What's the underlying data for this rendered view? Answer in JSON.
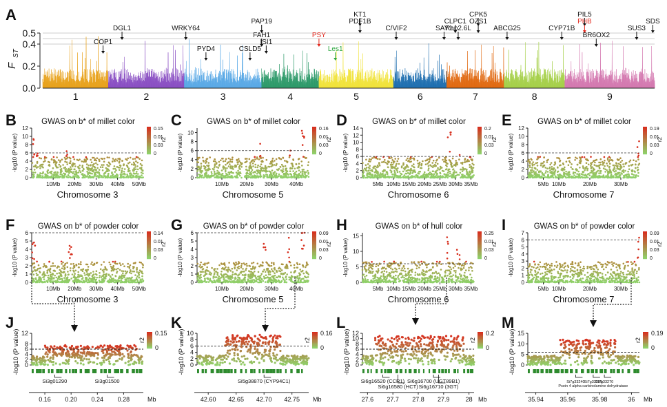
{
  "panels": {
    "A": "A",
    "B": "B",
    "C": "C",
    "D": "D",
    "E": "E",
    "F": "F",
    "G": "G",
    "H": "H",
    "I": "I",
    "J": "J",
    "K": "K",
    "L": "L",
    "M": "M"
  },
  "colors": {
    "chromosomes": [
      "#e8a21c",
      "#8a4fc3",
      "#5aa9e6",
      "#2e9a6a",
      "#f1e33a",
      "#1f6fb0",
      "#e16a12",
      "#a6d04a",
      "#d479b0"
    ],
    "red": "#d7301f",
    "green": "#8fd16a",
    "gene": "#2e8b2e",
    "label_red": "#e3261b",
    "label_green": "#2aa63d"
  },
  "fst": {
    "ylabel_main": "F",
    "ylabel_sub": "ST",
    "yticks": [
      "0.0",
      "0.2",
      "0.4",
      "0.5"
    ],
    "chromosomes": [
      "1",
      "2",
      "3",
      "4",
      "5",
      "6",
      "7",
      "8",
      "9"
    ],
    "genes": [
      {
        "label": "COP1",
        "color": "black",
        "chrom": 1,
        "pos": 0.92,
        "row": 3
      },
      {
        "label": "DGL1",
        "color": "black",
        "chrom": 2,
        "pos": 0.18,
        "row": 1
      },
      {
        "label": "WRKY64",
        "color": "black",
        "chrom": 3,
        "pos": 0.02,
        "row": 1
      },
      {
        "label": "PYD4",
        "color": "black",
        "chrom": 3,
        "pos": 0.28,
        "row": 4
      },
      {
        "label": "CSLD5",
        "color": "black",
        "chrom": 3,
        "pos": 0.85,
        "row": 4
      },
      {
        "label": "PAP19",
        "color": "black",
        "chrom": 4,
        "pos": 0.0,
        "row": 0
      },
      {
        "label": "FAH1",
        "color": "black",
        "chrom": 4,
        "pos": 0.0,
        "row": 2
      },
      {
        "label": "ISI1",
        "color": "black",
        "chrom": 4,
        "pos": 0.08,
        "row": 3
      },
      {
        "label": "PSY",
        "color": "red",
        "chrom": 5,
        "pos": 0.0,
        "row": 2
      },
      {
        "label": "Les1",
        "color": "green",
        "chrom": 5,
        "pos": 0.22,
        "row": 4
      },
      {
        "label": "KT1",
        "color": "black",
        "chrom": 5,
        "pos": 0.55,
        "row": -1
      },
      {
        "label": "PDF1B",
        "color": "black",
        "chrom": 5,
        "pos": 0.55,
        "row": 0
      },
      {
        "label": "C/VIF2",
        "color": "black",
        "chrom": 6,
        "pos": 0.05,
        "row": 1
      },
      {
        "label": "SAY1",
        "color": "black",
        "chrom": 6,
        "pos": 0.95,
        "row": 1
      },
      {
        "label": "CLPC1",
        "color": "black",
        "chrom": 7,
        "pos": 0.15,
        "row": 0
      },
      {
        "label": "Rap2.6L",
        "color": "black",
        "chrom": 7,
        "pos": 0.2,
        "row": 1
      },
      {
        "label": "CPK5",
        "color": "black",
        "chrom": 7,
        "pos": 0.55,
        "row": -1
      },
      {
        "label": "OZS1",
        "color": "black",
        "chrom": 7,
        "pos": 0.55,
        "row": 0
      },
      {
        "label": "ABCG25",
        "color": "black",
        "chrom": 8,
        "pos": 0.05,
        "row": 1
      },
      {
        "label": "CYP71B",
        "color": "black",
        "chrom": 8,
        "pos": 0.95,
        "row": 1
      },
      {
        "label": "PIL5",
        "color": "black",
        "chrom": 9,
        "pos": 0.22,
        "row": -1
      },
      {
        "label": "PHB",
        "color": "red",
        "chrom": 9,
        "pos": 0.22,
        "row": 0
      },
      {
        "label": "BR6OX2",
        "color": "black",
        "chrom": 9,
        "pos": 0.35,
        "row": 2
      },
      {
        "label": "SUS3",
        "color": "black",
        "chrom": 9,
        "pos": 0.8,
        "row": 1
      },
      {
        "label": "SDS",
        "color": "black",
        "chrom": 9,
        "pos": 0.98,
        "row": 0
      }
    ]
  },
  "manhattan": [
    {
      "id": "B",
      "title": "GWAS on b* of millet color",
      "ylabel": "-log10 (P value)",
      "yticks": [
        "0",
        "2",
        "4",
        "6",
        "8",
        "10",
        "12"
      ],
      "ymax": 12,
      "xlabel": "Chromosome 3",
      "xticks": [
        "10Mb",
        "20Mb",
        "30Mb",
        "40Mb",
        "50Mb"
      ],
      "xmax": 52,
      "legend": [
        "0.15",
        "0.01",
        "0.03",
        "0"
      ],
      "legend_title": "r2",
      "color": "#8a4fc3",
      "peaks": [
        {
          "x": 1,
          "h": 9.5
        },
        {
          "x": 2,
          "h": 6.5
        },
        {
          "x": 16,
          "h": 8
        },
        {
          "x": 40,
          "h": 7
        }
      ],
      "threshold": 6
    },
    {
      "id": "C",
      "title": "GWAS on b* of millet color",
      "ylabel": "-log10 (P value)",
      "yticks": [
        "0",
        "2",
        "4",
        "6",
        "8",
        "10"
      ],
      "ymax": 11,
      "xlabel": "Chromosome 5",
      "xticks": [
        "10Mb",
        "20Mb",
        "30Mb",
        "40Mb"
      ],
      "xmax": 45,
      "legend": [
        "0.16",
        "0.01",
        "0.03",
        "0"
      ],
      "legend_title": "r2",
      "color": "#f1e33a",
      "peaks": [
        {
          "x": 26,
          "h": 8
        },
        {
          "x": 37,
          "h": 8.5
        },
        {
          "x": 42.7,
          "h": 10.5
        }
      ],
      "threshold": 6
    },
    {
      "id": "D",
      "title": "GWAS on b* of millet color",
      "ylabel": "-log10 (P value)",
      "yticks": [
        "0",
        "2",
        "4",
        "6",
        "8",
        "10",
        "12",
        "14"
      ],
      "ymax": 14,
      "xlabel": "Chromosome 6",
      "xticks": [
        "5Mb",
        "10Mb",
        "15Mb",
        "20Mb",
        "25Mb",
        "30Mb",
        "35Mb"
      ],
      "xmax": 36,
      "legend": [
        "0.2",
        "0.01",
        "0.03",
        "0"
      ],
      "legend_title": "r2",
      "color": "#1f6fb0",
      "peaks": [
        {
          "x": 28,
          "h": 13
        },
        {
          "x": 31,
          "h": 10
        }
      ],
      "threshold": 6
    },
    {
      "id": "E",
      "title": "GWAS on b* of millet color",
      "ylabel": "-log10 (P value)",
      "yticks": [
        "0",
        "2",
        "4",
        "6",
        "8",
        "10",
        "12"
      ],
      "ymax": 12,
      "xlabel": "Chromosome 7",
      "xticks": [
        "5Mb",
        "10Mb",
        "20Mb",
        "30Mb"
      ],
      "xmax": 36,
      "legend": [
        "0.19",
        "0.01",
        "0.03",
        "0"
      ],
      "legend_title": "r2",
      "color": "#e16a12",
      "peaks": [
        {
          "x": 35.9,
          "h": 11
        }
      ],
      "threshold": 6
    },
    {
      "id": "F",
      "title": "GWAS on b* of powder color",
      "ylabel": "-log10 (P value)",
      "yticks": [
        "0",
        "1",
        "2",
        "3",
        "4",
        "5",
        "6"
      ],
      "ymax": 6,
      "xlabel": "Chromosome 3",
      "xticks": [
        "10Mb",
        "20Mb",
        "30Mb",
        "40Mb",
        "50Mb"
      ],
      "xmax": 52,
      "legend": [
        "0.14",
        "0.01",
        "0.03",
        "0"
      ],
      "legend_title": "r2",
      "color": "#8a4fc3",
      "peaks": [
        {
          "x": 1,
          "h": 5
        },
        {
          "x": 18,
          "h": 4.5
        }
      ],
      "threshold": 6
    },
    {
      "id": "G",
      "title": "GWAS on b* of powder color",
      "ylabel": "-log10 (P value)",
      "yticks": [
        "0",
        "1",
        "2",
        "3",
        "4",
        "5",
        "6"
      ],
      "ymax": 6,
      "xlabel": "Chromosome 5",
      "xticks": [
        "10Mb",
        "20Mb",
        "30Mb",
        "40Mb"
      ],
      "xmax": 45,
      "legend": [
        "0.09",
        "0.01",
        "0.03",
        "0"
      ],
      "legend_title": "r2",
      "color": "#f1e33a",
      "peaks": [
        {
          "x": 27,
          "h": 5
        },
        {
          "x": 37,
          "h": 5.5
        },
        {
          "x": 42.7,
          "h": 6.5
        }
      ],
      "threshold": 6
    },
    {
      "id": "H",
      "title": "GWAS on b* of hull color",
      "ylabel": "-log10 (P value)",
      "yticks": [
        "0",
        "5",
        "10",
        "15"
      ],
      "ymax": 16,
      "xlabel": "Chromosome 6",
      "xticks": [
        "5Mb",
        "10Mb",
        "15Mb",
        "20Mb",
        "25Mb",
        "30Mb",
        "35Mb"
      ],
      "xmax": 36,
      "legend": [
        "0.25",
        "0.01",
        "0.03",
        "0"
      ],
      "legend_title": "r2",
      "color": "#1f6fb0",
      "peaks": [
        {
          "x": 27.8,
          "h": 15
        },
        {
          "x": 31,
          "h": 11
        }
      ],
      "threshold": 6
    },
    {
      "id": "I",
      "title": "GWAS on b* of powder color",
      "ylabel": "-log10 (P value)",
      "yticks": [
        "0",
        "1",
        "2",
        "3",
        "4",
        "5",
        "6",
        "7"
      ],
      "ymax": 7,
      "xlabel": "Chromosome 7",
      "xticks": [
        "5Mb",
        "10Mb",
        "20Mb",
        "30Mb"
      ],
      "xmax": 36,
      "legend": [
        "0.09",
        "0.01",
        "0.03",
        "0"
      ],
      "legend_title": "r2",
      "color": "#e16a12",
      "peaks": [
        {
          "x": 35.9,
          "h": 6.5
        }
      ],
      "threshold": 6
    }
  ],
  "zoom": [
    {
      "id": "J",
      "ylabel": "-log10 (P value)",
      "yticks": [
        "0",
        "2",
        "4",
        "6",
        "8",
        "12"
      ],
      "ymax": 12,
      "xticks": [
        "0.16",
        "0.20",
        "0.24",
        "0.28"
      ],
      "xunit": "Mb",
      "xmin": 0.14,
      "xmax": 0.31,
      "legend": [
        "0.15",
        "0"
      ],
      "legend_title": "r2",
      "peak": [
        0.16,
        0.3
      ],
      "peak_h": 7.5,
      "genes": [
        {
          "label": "Si3g01290",
          "pos": 0.175
        },
        {
          "label": "Si3g01500",
          "pos": 0.255
        }
      ]
    },
    {
      "id": "K",
      "ylabel": "-log10 (P value)",
      "yticks": [
        "0",
        "2",
        "4",
        "6",
        "8",
        "10"
      ],
      "ymax": 10,
      "xticks": [
        "42.60",
        "42.65",
        "42.70",
        "42.75"
      ],
      "xunit": "Mb",
      "xmin": 42.58,
      "xmax": 42.78,
      "legend": [
        "0.16",
        "0"
      ],
      "legend_title": "r2",
      "peak": [
        42.63,
        42.73
      ],
      "peak_h": 9.5,
      "genes": [
        {
          "label": "Si5g38870 (CYP94C1)",
          "pos": 42.7
        }
      ]
    },
    {
      "id": "L",
      "ylabel": "-log10 (P value)",
      "yticks": [
        "0",
        "2",
        "4",
        "6",
        "8",
        "10",
        "12"
      ],
      "ymax": 12,
      "xticks": [
        "27.6",
        "27.7",
        "27.8",
        "27.9",
        "28"
      ],
      "xunit": "Mb",
      "xmin": 27.58,
      "xmax": 28.02,
      "legend": [
        "0.2",
        "0"
      ],
      "legend_title": "r2",
      "peak": [
        27.62,
        27.98
      ],
      "peak_h": 11,
      "genes": [
        {
          "label": "Si6g16520 (CCR1)",
          "pos": 27.66
        },
        {
          "label": "Si6g16580 (HCT)",
          "pos": 27.72
        },
        {
          "label": "Si6g16700 (UGT89B1)",
          "pos": 27.86
        },
        {
          "label": "Si6g16710 (3GT)",
          "pos": 27.88
        }
      ]
    },
    {
      "id": "M",
      "ylabel": "-log10 (P value)",
      "yticks": [
        "0",
        "5",
        "10",
        "15"
      ],
      "ymax": 15,
      "xticks": [
        "35.94",
        "35.96",
        "35.98",
        "36"
      ],
      "xunit": "Mb",
      "xmin": 35.935,
      "xmax": 36.005,
      "legend": [
        "0.19",
        "0"
      ],
      "legend_title": "r2",
      "peak": [
        35.955,
        35.99
      ],
      "peak_h": 12,
      "genes": [
        {
          "label": "Si7g33240",
          "pos": 35.965
        },
        {
          "label": "Si7g33250",
          "pos": 35.976
        },
        {
          "label": "Si7g33270",
          "pos": 35.983
        },
        {
          "label": "Psein 4 alpha carbinolamine dehydratase",
          "pos": 35.976
        }
      ]
    }
  ]
}
